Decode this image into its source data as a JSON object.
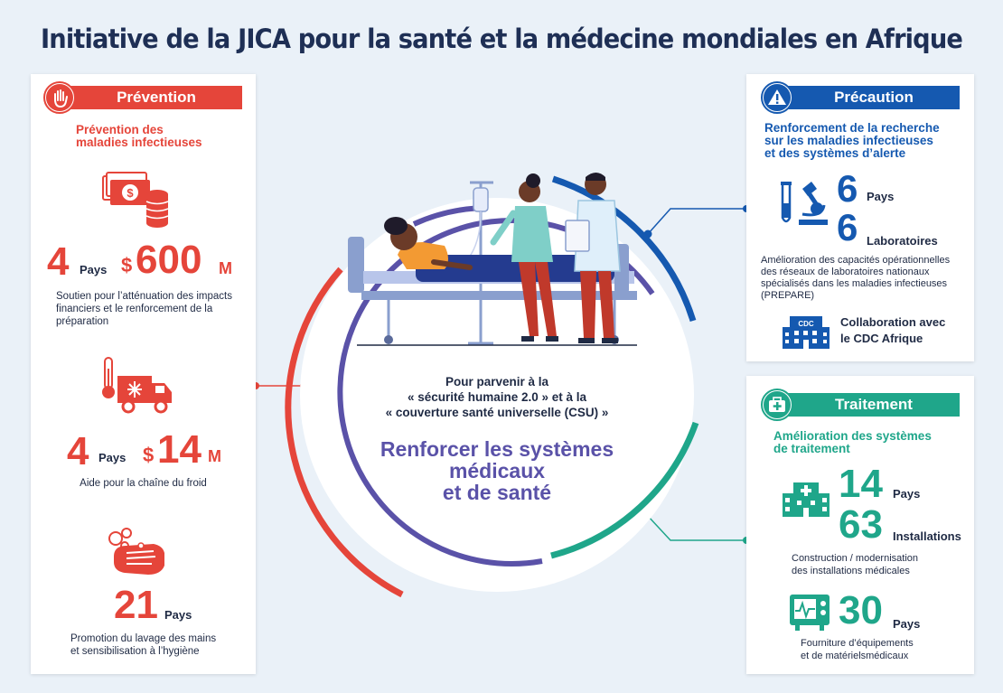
{
  "title": "Initiative de la JICA pour la santé et la médecine mondiales en Afrique",
  "colors": {
    "prevention": "#e5453a",
    "precaution": "#1559b0",
    "traitement": "#1fa68a",
    "center": "#5a52a8"
  },
  "center": {
    "subtitle_lines": [
      "Pour parvenir à la",
      "« sécurité humaine 2.0 » et à la",
      "« couverture santé universelle (CSU) »"
    ],
    "main_lines": [
      "Renforcer les systèmes",
      "médicaux",
      "et de santé"
    ]
  },
  "prevention": {
    "tag": "Prévention",
    "tag_icon": "raised-hand-icon",
    "subtitle_lines": [
      "Prévention des",
      "maladies infectieuses"
    ],
    "stat1": {
      "icon": "money-coins-icon",
      "count": "4",
      "count_unit": "Pays",
      "currency": "$",
      "amount": "600",
      "amount_unit": "M",
      "caption_lines": [
        "Soutien pour l’atténuation des impacts",
        "financiers et le renforcement de la",
        "préparation"
      ]
    },
    "stat2": {
      "icon": "cold-chain-truck-icon",
      "count": "4",
      "count_unit": "Pays",
      "currency": "$",
      "amount": "14",
      "amount_unit": "M",
      "caption": "Aide pour la chaîne du froid"
    },
    "stat3": {
      "icon": "handwashing-icon",
      "count": "21",
      "count_unit": "Pays",
      "caption_lines": [
        "Promotion du lavage des mains",
        "et sensibilisation à l’hygiène"
      ]
    }
  },
  "precaution": {
    "tag": "Précaution",
    "tag_icon": "warning-icon",
    "subtitle_lines": [
      "Renforcement de la recherche",
      "sur les maladies infectieuses",
      "et des systèmes d’alerte"
    ],
    "stat_icon": "lab-microscope-icon",
    "stat1": {
      "value": "6",
      "unit": "Pays"
    },
    "stat2": {
      "value": "6",
      "unit": "Laboratoires"
    },
    "caption_lines": [
      "Amélioration des capacités opérationnelles",
      "des réseaux de laboratoires nationaux",
      "spécialisés dans les maladies infectieuses",
      "(PREPARE)"
    ],
    "collab_icon": "cdc-building-icon",
    "collab_icon_label": "CDC",
    "collab_lines": [
      "Collaboration avec",
      "le CDC Afrique"
    ]
  },
  "traitement": {
    "tag": "Traitement",
    "tag_icon": "medical-kit-icon",
    "subtitle_lines": [
      "Amélioration des systèmes",
      "de traitement"
    ],
    "hospital_icon": "hospital-icon",
    "stat1": {
      "value": "14",
      "unit": "Pays"
    },
    "stat2": {
      "value": "63",
      "unit": "Installations"
    },
    "caption1_lines": [
      "Construction / modernisation",
      "des installations médicales"
    ],
    "monitor_icon": "medical-monitor-icon",
    "stat3": {
      "value": "30",
      "unit": "Pays"
    },
    "caption2_lines": [
      "Fourniture d’équipements",
      "et de matérielsmédicaux"
    ]
  },
  "illustration": {
    "icon": "hospital-bed-scene-icon"
  }
}
